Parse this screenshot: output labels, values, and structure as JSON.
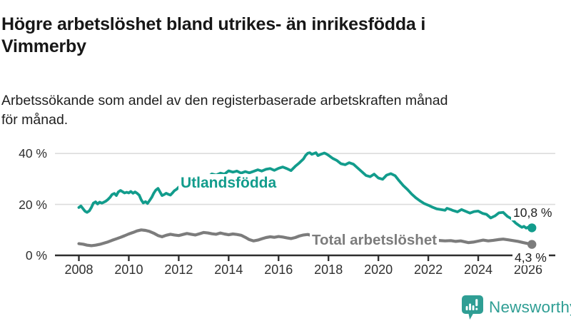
{
  "header": {
    "title": "Högre arbetslöshet bland utrikes- än inrikesfödda i\nVimmerby",
    "subtitle": "Arbetssökande som andel av den registerbaserade arbetskraften månad\nför månad."
  },
  "chart_data": {
    "type": "line",
    "title": "Högre arbetslöshet bland utrikes- än inrikesfödda i Vimmerby",
    "subtitle": "Arbetssökande som andel av den registerbaserade arbetskraften månad för månad.",
    "xlabel": "",
    "ylabel": "",
    "ylim": [
      0,
      44
    ],
    "xlim": [
      2007.05,
      2027.1
    ],
    "grid": true,
    "legend_position": "inline-labels",
    "y_ticks": [
      {
        "value": 0,
        "label": "0 %"
      },
      {
        "value": 20,
        "label": "20 %"
      },
      {
        "value": 40,
        "label": "40 %"
      }
    ],
    "x_ticks": [
      {
        "value": 2008,
        "label": "2008"
      },
      {
        "value": 2010,
        "label": "2010"
      },
      {
        "value": 2012,
        "label": "2012"
      },
      {
        "value": 2014,
        "label": "2014"
      },
      {
        "value": 2016,
        "label": "2016"
      },
      {
        "value": 2018,
        "label": "2018"
      },
      {
        "value": 2020,
        "label": "2020"
      },
      {
        "value": 2022,
        "label": "2022"
      },
      {
        "value": 2024,
        "label": "2024"
      },
      {
        "value": 2026,
        "label": "2026"
      }
    ],
    "series": [
      {
        "name": "Utlandsfödda",
        "color": "#129c8c",
        "end_label": "10,8 %",
        "end_value": 10.8,
        "points": [
          [
            2008.0,
            18.8
          ],
          [
            2008.08,
            19.4
          ],
          [
            2008.17,
            18.3
          ],
          [
            2008.25,
            17.3
          ],
          [
            2008.33,
            16.9
          ],
          [
            2008.42,
            17.5
          ],
          [
            2008.5,
            18.8
          ],
          [
            2008.58,
            20.5
          ],
          [
            2008.67,
            21.0
          ],
          [
            2008.75,
            20.2
          ],
          [
            2008.83,
            20.9
          ],
          [
            2008.92,
            20.5
          ],
          [
            2009.0,
            20.9
          ],
          [
            2009.08,
            21.3
          ],
          [
            2009.17,
            22.0
          ],
          [
            2009.25,
            22.8
          ],
          [
            2009.33,
            23.9
          ],
          [
            2009.42,
            24.3
          ],
          [
            2009.5,
            23.5
          ],
          [
            2009.58,
            24.9
          ],
          [
            2009.67,
            25.5
          ],
          [
            2009.75,
            25.0
          ],
          [
            2009.83,
            24.5
          ],
          [
            2009.92,
            24.8
          ],
          [
            2010.0,
            24.5
          ],
          [
            2010.08,
            25.1
          ],
          [
            2010.17,
            24.4
          ],
          [
            2010.25,
            24.9
          ],
          [
            2010.33,
            24.4
          ],
          [
            2010.42,
            23.6
          ],
          [
            2010.5,
            21.8
          ],
          [
            2010.58,
            20.6
          ],
          [
            2010.67,
            21.1
          ],
          [
            2010.75,
            20.4
          ],
          [
            2010.83,
            21.5
          ],
          [
            2010.92,
            22.8
          ],
          [
            2011.0,
            24.4
          ],
          [
            2011.08,
            25.6
          ],
          [
            2011.17,
            26.3
          ],
          [
            2011.25,
            24.9
          ],
          [
            2011.33,
            23.5
          ],
          [
            2011.42,
            23.9
          ],
          [
            2011.5,
            24.4
          ],
          [
            2011.58,
            24.0
          ],
          [
            2011.67,
            23.7
          ],
          [
            2011.75,
            24.5
          ],
          [
            2011.83,
            25.4
          ],
          [
            2011.92,
            26.0
          ],
          [
            2012.0,
            26.8
          ],
          [
            2012.08,
            27.2
          ],
          [
            2012.17,
            26.6
          ],
          [
            2012.25,
            27.3
          ],
          [
            2012.33,
            27.8
          ],
          [
            2012.5,
            28.5
          ],
          [
            2012.67,
            28.1
          ],
          [
            2012.83,
            29.0
          ],
          [
            2013.0,
            30.1
          ],
          [
            2013.17,
            30.8
          ],
          [
            2013.33,
            32.0
          ],
          [
            2013.5,
            31.5
          ],
          [
            2013.67,
            32.3
          ],
          [
            2013.83,
            31.9
          ],
          [
            2014.0,
            33.2
          ],
          [
            2014.17,
            32.7
          ],
          [
            2014.33,
            33.1
          ],
          [
            2014.5,
            32.3
          ],
          [
            2014.67,
            32.9
          ],
          [
            2014.83,
            32.4
          ],
          [
            2015.0,
            33.0
          ],
          [
            2015.17,
            33.6
          ],
          [
            2015.33,
            33.1
          ],
          [
            2015.5,
            33.8
          ],
          [
            2015.67,
            34.1
          ],
          [
            2015.83,
            33.4
          ],
          [
            2016.0,
            34.2
          ],
          [
            2016.17,
            34.7
          ],
          [
            2016.33,
            34.1
          ],
          [
            2016.5,
            33.3
          ],
          [
            2016.67,
            35.0
          ],
          [
            2016.83,
            36.3
          ],
          [
            2017.0,
            37.9
          ],
          [
            2017.08,
            39.2
          ],
          [
            2017.17,
            40.1
          ],
          [
            2017.25,
            40.3
          ],
          [
            2017.33,
            39.7
          ],
          [
            2017.42,
            40.0
          ],
          [
            2017.5,
            40.3
          ],
          [
            2017.58,
            39.2
          ],
          [
            2017.67,
            39.6
          ],
          [
            2017.75,
            39.9
          ],
          [
            2017.83,
            40.2
          ],
          [
            2017.92,
            39.8
          ],
          [
            2018.0,
            39.3
          ],
          [
            2018.17,
            38.1
          ],
          [
            2018.33,
            37.3
          ],
          [
            2018.5,
            36.0
          ],
          [
            2018.67,
            35.6
          ],
          [
            2018.83,
            36.4
          ],
          [
            2019.0,
            35.8
          ],
          [
            2019.17,
            34.3
          ],
          [
            2019.33,
            32.9
          ],
          [
            2019.5,
            31.4
          ],
          [
            2019.67,
            30.9
          ],
          [
            2019.83,
            31.9
          ],
          [
            2020.0,
            30.4
          ],
          [
            2020.17,
            29.9
          ],
          [
            2020.33,
            31.5
          ],
          [
            2020.5,
            32.1
          ],
          [
            2020.67,
            31.3
          ],
          [
            2020.83,
            29.3
          ],
          [
            2021.0,
            27.4
          ],
          [
            2021.17,
            25.8
          ],
          [
            2021.33,
            24.1
          ],
          [
            2021.5,
            22.6
          ],
          [
            2021.67,
            21.4
          ],
          [
            2021.83,
            20.4
          ],
          [
            2022.0,
            19.7
          ],
          [
            2022.17,
            18.9
          ],
          [
            2022.33,
            18.3
          ],
          [
            2022.5,
            18.0
          ],
          [
            2022.67,
            17.7
          ],
          [
            2022.75,
            18.5
          ],
          [
            2022.92,
            17.9
          ],
          [
            2023.0,
            17.6
          ],
          [
            2023.17,
            17.1
          ],
          [
            2023.33,
            18.0
          ],
          [
            2023.5,
            17.3
          ],
          [
            2023.67,
            16.6
          ],
          [
            2023.83,
            17.2
          ],
          [
            2024.0,
            17.4
          ],
          [
            2024.17,
            16.5
          ],
          [
            2024.33,
            16.1
          ],
          [
            2024.5,
            14.7
          ],
          [
            2024.67,
            15.5
          ],
          [
            2024.83,
            16.7
          ],
          [
            2025.0,
            16.9
          ],
          [
            2025.17,
            15.3
          ],
          [
            2025.33,
            14.4
          ],
          [
            2025.5,
            12.7
          ],
          [
            2025.67,
            11.5
          ],
          [
            2025.75,
            11.0
          ],
          [
            2025.83,
            11.4
          ],
          [
            2025.92,
            10.7
          ],
          [
            2026.0,
            11.1
          ],
          [
            2026.15,
            10.8
          ]
        ]
      },
      {
        "name": "Total arbetslöshet",
        "color": "#7c7c7c",
        "end_label": "4,3 %",
        "end_value": 4.3,
        "points": [
          [
            2008.0,
            4.6
          ],
          [
            2008.17,
            4.4
          ],
          [
            2008.33,
            4.0
          ],
          [
            2008.5,
            3.8
          ],
          [
            2008.67,
            4.0
          ],
          [
            2008.83,
            4.3
          ],
          [
            2009.0,
            4.8
          ],
          [
            2009.17,
            5.3
          ],
          [
            2009.33,
            5.9
          ],
          [
            2009.5,
            6.5
          ],
          [
            2009.67,
            7.1
          ],
          [
            2009.83,
            7.7
          ],
          [
            2010.0,
            8.4
          ],
          [
            2010.17,
            9.0
          ],
          [
            2010.33,
            9.6
          ],
          [
            2010.5,
            10.0
          ],
          [
            2010.67,
            9.8
          ],
          [
            2010.83,
            9.4
          ],
          [
            2011.0,
            8.7
          ],
          [
            2011.17,
            7.8
          ],
          [
            2011.33,
            7.3
          ],
          [
            2011.5,
            7.9
          ],
          [
            2011.67,
            8.3
          ],
          [
            2011.83,
            8.0
          ],
          [
            2012.0,
            7.8
          ],
          [
            2012.17,
            8.2
          ],
          [
            2012.33,
            8.6
          ],
          [
            2012.5,
            8.3
          ],
          [
            2012.67,
            8.0
          ],
          [
            2012.83,
            8.5
          ],
          [
            2013.0,
            9.0
          ],
          [
            2013.17,
            8.8
          ],
          [
            2013.33,
            8.5
          ],
          [
            2013.5,
            8.3
          ],
          [
            2013.67,
            8.8
          ],
          [
            2013.83,
            8.4
          ],
          [
            2014.0,
            8.1
          ],
          [
            2014.17,
            8.4
          ],
          [
            2014.33,
            8.2
          ],
          [
            2014.5,
            7.9
          ],
          [
            2014.67,
            7.1
          ],
          [
            2014.83,
            6.2
          ],
          [
            2015.0,
            5.7
          ],
          [
            2015.17,
            6.0
          ],
          [
            2015.33,
            6.5
          ],
          [
            2015.5,
            7.0
          ],
          [
            2015.67,
            7.3
          ],
          [
            2015.83,
            7.1
          ],
          [
            2016.0,
            7.4
          ],
          [
            2016.17,
            7.2
          ],
          [
            2016.33,
            6.9
          ],
          [
            2016.5,
            6.6
          ],
          [
            2016.67,
            7.0
          ],
          [
            2016.83,
            7.6
          ],
          [
            2017.0,
            8.0
          ],
          [
            2017.17,
            8.2
          ],
          [
            2017.33,
            7.8
          ],
          [
            2017.5,
            7.6
          ],
          [
            2017.75,
            7.4
          ],
          [
            2018.0,
            7.6
          ],
          [
            2018.33,
            7.3
          ],
          [
            2018.67,
            7.1
          ],
          [
            2019.0,
            7.0
          ],
          [
            2019.33,
            6.8
          ],
          [
            2019.67,
            7.1
          ],
          [
            2020.0,
            7.4
          ],
          [
            2020.33,
            8.3
          ],
          [
            2020.5,
            8.5
          ],
          [
            2020.75,
            8.0
          ],
          [
            2021.0,
            7.7
          ],
          [
            2021.33,
            7.1
          ],
          [
            2021.67,
            6.6
          ],
          [
            2022.0,
            6.2
          ],
          [
            2022.33,
            5.9
          ],
          [
            2022.67,
            5.7
          ],
          [
            2022.9,
            5.8
          ],
          [
            2023.1,
            5.5
          ],
          [
            2023.3,
            5.7
          ],
          [
            2023.6,
            5.0
          ],
          [
            2023.8,
            5.2
          ],
          [
            2024.0,
            5.6
          ],
          [
            2024.2,
            6.0
          ],
          [
            2024.4,
            5.7
          ],
          [
            2024.6,
            5.9
          ],
          [
            2024.8,
            6.2
          ],
          [
            2025.0,
            6.4
          ],
          [
            2025.2,
            6.1
          ],
          [
            2025.4,
            5.8
          ],
          [
            2025.6,
            5.5
          ],
          [
            2025.8,
            5.0
          ],
          [
            2026.0,
            4.6
          ],
          [
            2026.15,
            4.3
          ]
        ]
      }
    ],
    "colors": {
      "axis": "#2e2e2e",
      "gridline": "#dcdcdc",
      "series_1": "#129c8c",
      "series_2": "#7c7c7c"
    }
  },
  "footer": {
    "brand": "Newsworthy",
    "brand_color": "#2f9e94",
    "logo_icon": "bar-chart-speech-bubble-icon"
  }
}
